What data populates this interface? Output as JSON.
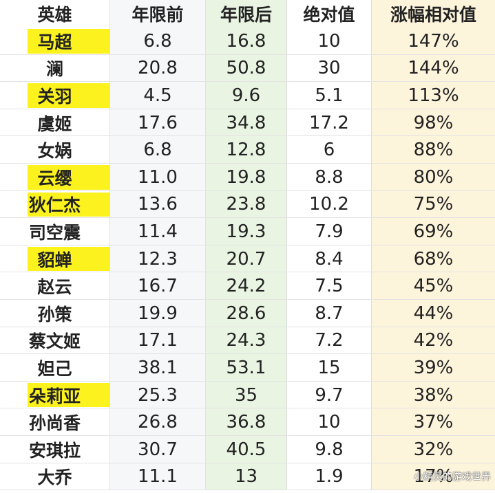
{
  "table": {
    "headers": [
      "英雄",
      "年限前",
      "年限后",
      "绝对值",
      "涨幅相对值"
    ],
    "rows": [
      {
        "hero": "马超",
        "before": "6.8",
        "after": "16.8",
        "abs": "10",
        "rel": "147%",
        "highlight": true
      },
      {
        "hero": "澜",
        "before": "20.8",
        "after": "50.8",
        "abs": "30",
        "rel": "144%",
        "highlight": false
      },
      {
        "hero": "关羽",
        "before": "4.5",
        "after": "9.6",
        "abs": "5.1",
        "rel": "113%",
        "highlight": true
      },
      {
        "hero": "虞姬",
        "before": "17.6",
        "after": "34.8",
        "abs": "17.2",
        "rel": "98%",
        "highlight": false
      },
      {
        "hero": "女娲",
        "before": "6.8",
        "after": "12.8",
        "abs": "6",
        "rel": "88%",
        "highlight": false
      },
      {
        "hero": "云缨",
        "before": "11.0",
        "after": "19.8",
        "abs": "8.8",
        "rel": "80%",
        "highlight": true
      },
      {
        "hero": "狄仁杰",
        "before": "13.6",
        "after": "23.8",
        "abs": "10.2",
        "rel": "75%",
        "highlight": true
      },
      {
        "hero": "司空震",
        "before": "11.4",
        "after": "19.3",
        "abs": "7.9",
        "rel": "69%",
        "highlight": false
      },
      {
        "hero": "貂蝉",
        "before": "12.3",
        "after": "20.7",
        "abs": "8.4",
        "rel": "68%",
        "highlight": true
      },
      {
        "hero": "赵云",
        "before": "16.7",
        "after": "24.2",
        "abs": "7.5",
        "rel": "45%",
        "highlight": false
      },
      {
        "hero": "孙策",
        "before": "19.9",
        "after": "28.6",
        "abs": "8.7",
        "rel": "44%",
        "highlight": false
      },
      {
        "hero": "蔡文姬",
        "before": "17.1",
        "after": "24.3",
        "abs": "7.2",
        "rel": "42%",
        "highlight": false
      },
      {
        "hero": "妲己",
        "before": "38.1",
        "after": "53.1",
        "abs": "15",
        "rel": "39%",
        "highlight": false
      },
      {
        "hero": "朵莉亚",
        "before": "25.3",
        "after": "35",
        "abs": "9.7",
        "rel": "38%",
        "highlight": true
      },
      {
        "hero": "孙尚香",
        "before": "26.8",
        "after": "36.8",
        "abs": "10",
        "rel": "37%",
        "highlight": false
      },
      {
        "hero": "安琪拉",
        "before": "30.7",
        "after": "40.5",
        "abs": "9.8",
        "rel": "32%",
        "highlight": false
      },
      {
        "hero": "大乔",
        "before": "11.1",
        "after": "13",
        "abs": "1.9",
        "rel": "17%",
        "highlight": false
      }
    ]
  },
  "watermark": "小精灵的游戏世界",
  "colors": {
    "highlight": "#fbf21e",
    "col_before_bg": "#f6f7f9",
    "col_after_bg": "#e9f4e3",
    "col_rel_bg": "#fdf4dc"
  }
}
